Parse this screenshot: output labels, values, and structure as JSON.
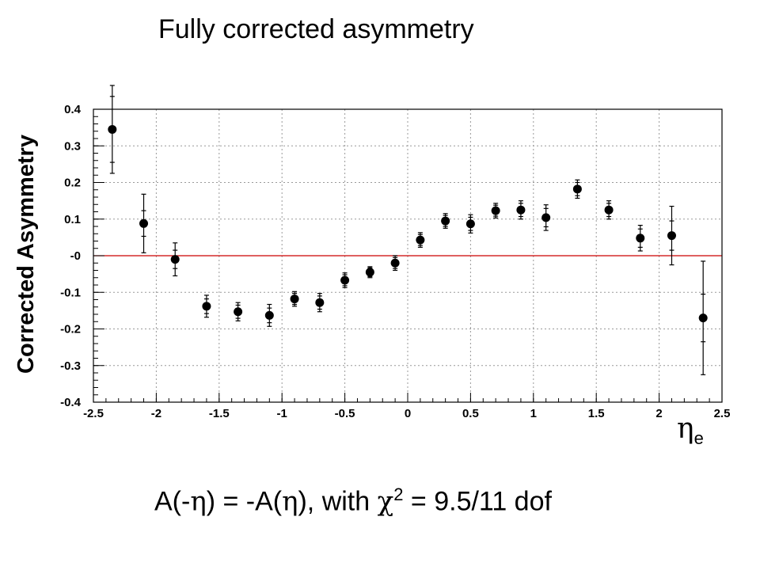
{
  "slide": {
    "title": "Fully corrected asymmetry",
    "formula": {
      "p1": "A(-",
      "eta1": "η",
      "p2": ") = -A(",
      "eta2": "η",
      "p3": "), with ",
      "chi": "χ",
      "sup": "2",
      "p4": " = 9.5/11 dof"
    }
  },
  "chart_data": {
    "type": "scatter",
    "title": "",
    "xlabel_base": "η",
    "xlabel_sub": "e",
    "ylabel": "Corrected Asymmetry",
    "xlim": [
      -2.5,
      2.5
    ],
    "ylim": [
      -0.4,
      0.4
    ],
    "grid": true,
    "x_ticks": [
      "-2.5",
      "-2",
      "-1.5",
      "-1",
      "-0.5",
      "0",
      "0.5",
      "1",
      "1.5",
      "2",
      "2.5"
    ],
    "y_ticks": [
      "-0.4",
      "-0.3",
      "-0.2",
      "-0.1",
      "-0",
      "0.1",
      "0.2",
      "0.3",
      "0.4"
    ],
    "reference_line": {
      "y": 0,
      "color": "#cc0000"
    },
    "marker_color": "#000000",
    "series": [
      {
        "x": [
          -2.35,
          -2.1,
          -1.85,
          -1.6,
          -1.35,
          -1.1,
          -0.9,
          -0.7,
          -0.5,
          -0.3,
          -0.1,
          0.1,
          0.3,
          0.5,
          0.7,
          0.9,
          1.1,
          1.35,
          1.6,
          1.85,
          2.1,
          2.35
        ],
        "y": [
          0.345,
          0.088,
          -0.01,
          -0.138,
          -0.153,
          -0.163,
          -0.118,
          -0.128,
          -0.067,
          -0.045,
          -0.02,
          0.043,
          0.095,
          0.087,
          0.123,
          0.125,
          0.104,
          0.182,
          0.125,
          0.048,
          0.055,
          -0.17
        ],
        "err_outer": [
          0.12,
          0.08,
          0.045,
          0.03,
          0.025,
          0.03,
          0.02,
          0.025,
          0.02,
          0.015,
          0.02,
          0.02,
          0.02,
          0.025,
          0.02,
          0.025,
          0.035,
          0.025,
          0.025,
          0.035,
          0.08,
          0.155
        ],
        "err_inner": [
          0.09,
          0.035,
          0.025,
          0.02,
          0.018,
          0.02,
          0.015,
          0.018,
          0.015,
          0.012,
          0.015,
          0.015,
          0.015,
          0.018,
          0.015,
          0.018,
          0.025,
          0.018,
          0.018,
          0.025,
          0.04,
          0.065
        ]
      }
    ]
  }
}
